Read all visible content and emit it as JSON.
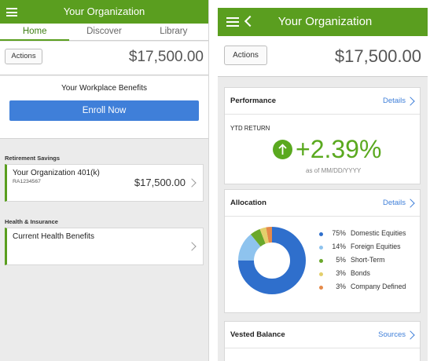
{
  "left": {
    "title": "Your Organization",
    "tabs": [
      "Home",
      "Discover",
      "Library"
    ],
    "actions_label": "Actions",
    "balance": "$17,500.00",
    "benefits_title": "Your Workplace Benefits",
    "enroll_label": "Enroll Now",
    "retirement": {
      "label": "Retirement Savings",
      "plan_name": "Your Organization 401(k)",
      "plan_id": "RA1234567",
      "plan_value": "$17,500.00"
    },
    "health": {
      "label": "Health & Insurance",
      "item": "Current Health Benefits"
    }
  },
  "right": {
    "title": "Your Organization",
    "actions_label": "Actions",
    "balance": "$17,500.00",
    "performance": {
      "title": "Performance",
      "link": "Details",
      "ytd_label": "YTD RETURN",
      "ytd_value": "+2.39%",
      "as_of": "as of MM/DD/YYYY"
    },
    "allocation": {
      "title": "Allocation",
      "link": "Details",
      "items": [
        {
          "pct": "75%",
          "name": "Domestic Equities",
          "value": 75,
          "color": "#2f6fcc"
        },
        {
          "pct": "14%",
          "name": "Foreign Equities",
          "value": 14,
          "color": "#8ec3ee"
        },
        {
          "pct": "5%",
          "name": "Short-Term",
          "value": 5,
          "color": "#6aa82b"
        },
        {
          "pct": "3%",
          "name": "Bonds",
          "value": 3,
          "color": "#e3cf6b"
        },
        {
          "pct": "3%",
          "name": "Company Defined",
          "value": 3,
          "color": "#e58a4a"
        }
      ]
    },
    "vested": {
      "title": "Vested Balance",
      "link": "Sources"
    }
  },
  "colors": {
    "brand_green": "#5a9e1f",
    "accent_blue": "#3f7fd9",
    "positive_green": "#5aa91f"
  }
}
